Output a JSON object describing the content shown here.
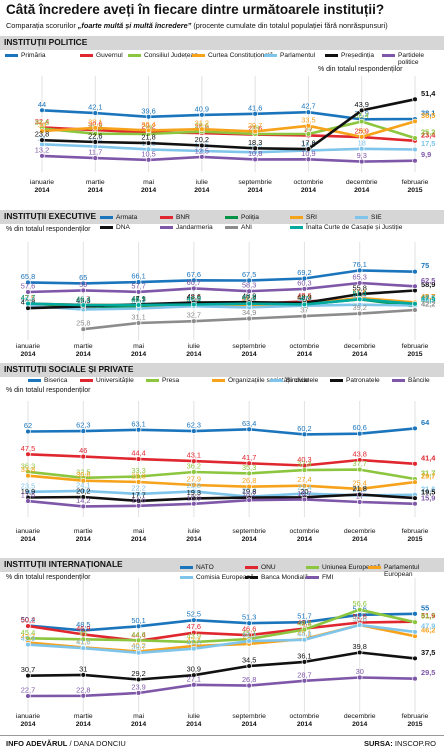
{
  "title": "Câtă încredere aveți în fiecare dintre următoarele instituții?",
  "subtitle_prefix": "Comparația scorurilor ",
  "subtitle_emph": "„foarte multă și multă încredere”",
  "subtitle_suffix": " (procente cumulate din totalul populației fără nonrăspunsuri)",
  "footer": {
    "source_brand": "INFO ADEVĂRUL",
    "author": " / DANA DONCIU",
    "source_label": "SURSA:",
    "source_name": " INSCOP.RO"
  },
  "colors": {
    "blue": "#1b75bc",
    "red": "#e0262e",
    "green": "#8cc63f",
    "orange": "#f7a21b",
    "lightblue": "#7fc4ea",
    "black": "#111111",
    "purple": "#7e57a8",
    "darkgreen": "#009245",
    "gray": "#8c8c8c",
    "teal": "#00a99d",
    "panel": "#d6d6d6"
  },
  "chart_data": [
    {
      "type": "line",
      "title": "INSTITUȚII POLITICE",
      "unit": "% din totalul respondenților",
      "x": [
        "ianuarie 2014",
        "martie 2014",
        "mai 2014",
        "iulie 2014",
        "septembrie 2014",
        "octombrie 2014",
        "decembrie 2014",
        "februarie 2015"
      ],
      "ylim": [
        5,
        55
      ],
      "series": [
        {
          "name": "Primăria",
          "color": "blue",
          "values": [
            44,
            42.1,
            39.6,
            40.9,
            41.6,
            42.7,
            37.9,
            38.1
          ]
        },
        {
          "name": "Guvernul",
          "color": "red",
          "values": [
            32.4,
            30.6,
            29.2,
            28.6,
            27.6,
            27,
            25.9,
            23.4
          ]
        },
        {
          "name": "Consiliul Județean",
          "color": "green",
          "values": [
            31.6,
            28.2,
            28,
            29.6,
            28,
            28,
            36.4,
            25.2
          ]
        },
        {
          "name": "Curtea Constituțională",
          "color": "orange",
          "values": [
            30,
            32.1,
            30.4,
            31.2,
            29.7,
            33.5,
            26,
            36.5
          ]
        },
        {
          "name": "Parlamentul",
          "color": "lightblue",
          "values": [
            21,
            19.5,
            17.6,
            16.5,
            15.6,
            16.8,
            18,
            17.5
          ]
        },
        {
          "name": "Președinția",
          "color": "black",
          "values": [
            23.8,
            22.6,
            21.8,
            20.2,
            18.3,
            17.8,
            43.9,
            51.4
          ]
        },
        {
          "name": "Partidele politice",
          "color": "purple",
          "values": [
            13.2,
            11.7,
            10.5,
            12.5,
            10.8,
            10.9,
            9.3,
            9.9
          ]
        }
      ]
    },
    {
      "type": "line",
      "title": "INSTITUȚII EXECUTIVE",
      "unit": "% din totalul respondenților",
      "x": [
        "ianuarie 2014",
        "martie 2014",
        "mai 2014",
        "iulie 2014",
        "septembrie 2014",
        "octombrie 2014",
        "decembrie 2014",
        "februarie 2015"
      ],
      "ylim": [
        20,
        85
      ],
      "series": [
        {
          "name": "Armata",
          "color": "blue",
          "values": [
            65.8,
            65,
            66.1,
            67.6,
            67.5,
            69.2,
            76.1,
            75
          ]
        },
        {
          "name": "BNR",
          "color": "red",
          "values": [
            47.5,
            46.7,
            46.3,
            47.6,
            47.4,
            49.6,
            51.3,
            48.7
          ]
        },
        {
          "name": "Poliția",
          "color": "darkgreen",
          "values": [
            47.7,
            42.7,
            45.7,
            46.9,
            47.6,
            47,
            51.4,
            45.5
          ]
        },
        {
          "name": "SRI",
          "color": "orange",
          "values": [
            47.5,
            46.4,
            46.5,
            46.6,
            46.7,
            47.2,
            52.6,
            48.7
          ]
        },
        {
          "name": "SIE",
          "color": "lightblue",
          "values": [
            45.8,
            42.7,
            43.5,
            45.5,
            44.5,
            45.9,
            46.8,
            46.1
          ]
        },
        {
          "name": "DNA",
          "color": "black",
          "values": [
            43.8,
            45.3,
            47.1,
            48.6,
            48.9,
            48.3,
            55.8,
            58.9
          ]
        },
        {
          "name": "Jandarmeria",
          "color": "purple",
          "values": [
            57.6,
            59,
            57.7,
            60.7,
            58.3,
            60.3,
            65.3,
            62.5
          ]
        },
        {
          "name": "ANI",
          "color": "gray",
          "values": [
            null,
            25.8,
            31.1,
            32.7,
            34.9,
            37,
            39.2,
            42.2
          ]
        },
        {
          "name": "Înalta Curte de Casație și Justiție",
          "color": "teal",
          "values": [
            47.7,
            46.4,
            46.5,
            46.9,
            47.6,
            47,
            51.4,
            47.5
          ]
        }
      ]
    },
    {
      "type": "line",
      "title": "INSTITUȚII SOCIALE ȘI PRIVATE",
      "unit": "% din totalul respondenților",
      "x": [
        "ianuarie 2014",
        "martie 2014",
        "mai 2014",
        "iulie 2014",
        "septembrie 2014",
        "octombrie 2014",
        "decembrie 2014",
        "februarie 2015"
      ],
      "ylim": [
        10,
        70
      ],
      "series": [
        {
          "name": "Biserica",
          "color": "blue",
          "values": [
            62,
            62.3,
            63.1,
            62.3,
            63.4,
            60.2,
            60.6,
            64
          ]
        },
        {
          "name": "Universitățile",
          "color": "red",
          "values": [
            47.5,
            46,
            44.4,
            43.1,
            41.7,
            40.3,
            43.8,
            41.4
          ]
        },
        {
          "name": "Presa",
          "color": "green",
          "values": [
            36.3,
            32.5,
            33.3,
            36.2,
            35.3,
            37.4,
            37.7,
            31.7
          ]
        },
        {
          "name": "Organizațiile societății civile",
          "color": "orange",
          "values": [
            33.8,
            30.6,
            29.8,
            27.9,
            26.8,
            27.4,
            25.4,
            29.7
          ]
        },
        {
          "name": "Sindicatele",
          "color": "lightblue",
          "values": [
            23.5,
            24.1,
            22.2,
            23.8,
            20.4,
            22.4,
            21.2,
            21.6
          ]
        },
        {
          "name": "Patronatele",
          "color": "black",
          "values": [
            19.9,
            20.2,
            17.7,
            19.3,
            19.8,
            20,
            21.8,
            19.5
          ]
        },
        {
          "name": "Băncile",
          "color": "purple",
          "values": [
            17.6,
            14.2,
            14.6,
            15.9,
            18.2,
            18.7,
            17,
            15.9
          ]
        }
      ]
    },
    {
      "type": "line",
      "title": "INSTITUȚII INTERNAȚIONALE",
      "unit": "% din totalul respondenților",
      "x": [
        "ianuarie 2014",
        "martie 2014",
        "mai 2014",
        "iulie 2014",
        "septembrie 2014",
        "octombrie 2014",
        "decembrie 2014",
        "februarie 2015"
      ],
      "ylim": [
        18,
        62
      ],
      "series": [
        {
          "name": "NATO",
          "color": "blue",
          "values": [
            50.4,
            48.5,
            50.1,
            52.5,
            51.3,
            51.7,
            54.6,
            55
          ]
        },
        {
          "name": "ONU",
          "color": "red",
          "values": [
            50.2,
            46.9,
            44.4,
            47.6,
            46.6,
            49.2,
            51.6,
            51.9
          ]
        },
        {
          "name": "Uniunea Europeană",
          "color": "green",
          "values": [
            45.4,
            45,
            44.6,
            43.9,
            45.1,
            48.8,
            56.6,
            51.7
          ]
        },
        {
          "name": "Parlamentul European",
          "color": "orange",
          "values": [
            43.7,
            41.8,
            40.2,
            42.4,
            43.2,
            45.1,
            50.6,
            46.2
          ]
        },
        {
          "name": "Comisia Europeană",
          "color": "lightblue",
          "values": [
            42.9,
            41.5,
            39.7,
            41.3,
            44.3,
            44.8,
            50.6,
            47.9
          ]
        },
        {
          "name": "Banca Mondială",
          "color": "black",
          "values": [
            30.7,
            31,
            29.2,
            30.9,
            34.5,
            36.1,
            39.8,
            37.5
          ]
        },
        {
          "name": "FMI",
          "color": "purple",
          "values": [
            22.7,
            22.8,
            23.9,
            27.1,
            26.8,
            28.7,
            30,
            29.5
          ]
        }
      ]
    }
  ]
}
